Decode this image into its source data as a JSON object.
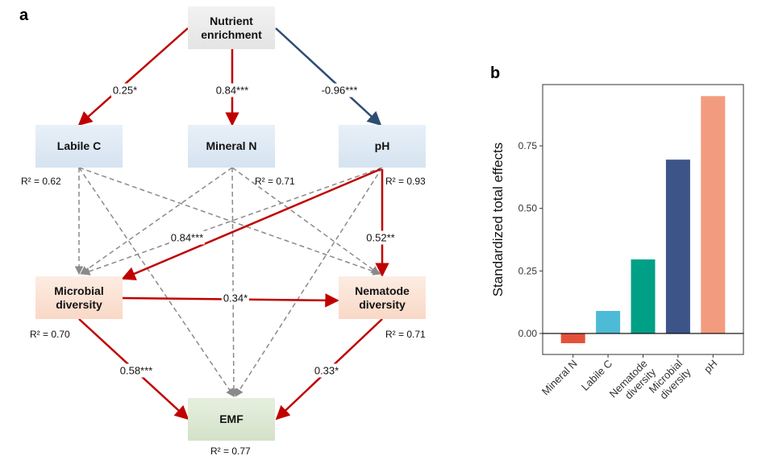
{
  "panel_a": {
    "panel_label": "a",
    "nodes": [
      {
        "label": "Nutrient enrichment"
      },
      {
        "label": "Labile C",
        "r2": "R² = 0.62"
      },
      {
        "label": "Mineral N",
        "r2": "R² = 0.71"
      },
      {
        "label": "pH",
        "r2": "R² = 0.93"
      },
      {
        "label": "Microbial diversity",
        "r2": "R² = 0.70"
      },
      {
        "label": "Nematode diversity",
        "r2": "R² = 0.71"
      },
      {
        "label": "EMF",
        "r2": "R² = 0.77"
      }
    ],
    "edges": [
      {
        "label": "0.25*"
      },
      {
        "label": "0.84***"
      },
      {
        "label": "-0.96***"
      },
      {
        "label": "0.84***"
      },
      {
        "label": "0.52**"
      },
      {
        "label": "0.34*"
      },
      {
        "label": "0.58***"
      },
      {
        "label": "0.33*"
      }
    ]
  },
  "chart_data": {
    "type": "bar",
    "panel_label": "b",
    "y_label": "Standardized total effects",
    "categories": [
      "Mineral N",
      "Labile C",
      "Nematode\ndiversity",
      "Microbial\ndiversity",
      "pH"
    ],
    "values": [
      -0.039,
      0.09,
      0.296,
      0.695,
      0.949
    ],
    "colors": [
      "#e4513a",
      "#4dbbd5",
      "#00a087",
      "#3c5488",
      "#f39b7f"
    ],
    "ylim": [
      -0.084,
      0.995
    ],
    "yticks": [
      {
        "value": 0,
        "label": "0.00"
      },
      {
        "value": 0.25,
        "label": "0.25"
      },
      {
        "value": 0.5,
        "label": "0.50"
      },
      {
        "value": 0.75,
        "label": "0.75"
      }
    ]
  }
}
